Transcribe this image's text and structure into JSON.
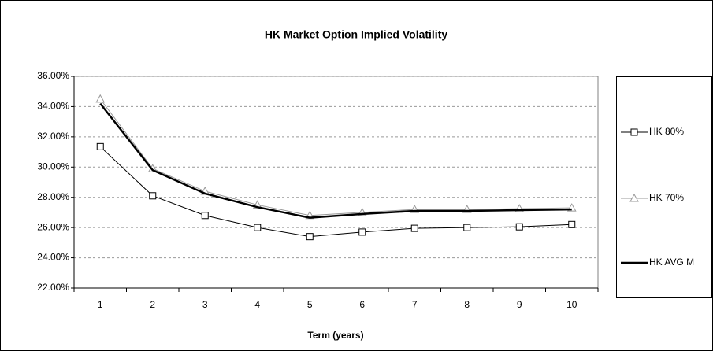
{
  "chart_data": {
    "type": "line",
    "title": "HK Market Option Implied Volatility",
    "x_label": "Term (years)",
    "categories": [
      "1",
      "2",
      "3",
      "4",
      "5",
      "6",
      "7",
      "8",
      "9",
      "10"
    ],
    "series": [
      {
        "name": "HK 80%",
        "color": "#000000",
        "marker": "square",
        "line_width": 1,
        "values": [
          31.35,
          28.1,
          26.8,
          26.0,
          25.4,
          25.7,
          25.95,
          26.0,
          26.05,
          26.2
        ]
      },
      {
        "name": "HK 70%",
        "color": "#999999",
        "marker": "triangle",
        "line_width": 1,
        "values": [
          34.5,
          29.9,
          28.4,
          27.5,
          26.8,
          27.0,
          27.2,
          27.2,
          27.25,
          27.3
        ]
      },
      {
        "name": "HK AVG M",
        "color": "#000000",
        "marker": "none",
        "line_width": 2.5,
        "values": [
          34.2,
          29.8,
          28.25,
          27.35,
          26.65,
          26.9,
          27.1,
          27.1,
          27.15,
          27.2
        ]
      }
    ],
    "ylim": [
      22,
      36
    ],
    "yticks": [
      {
        "value": 22,
        "label": "22.00%"
      },
      {
        "value": 24,
        "label": "24.00%"
      },
      {
        "value": 26,
        "label": "26.00%"
      },
      {
        "value": 28,
        "label": "28.00%"
      },
      {
        "value": 30,
        "label": "30.00%"
      },
      {
        "value": 32,
        "label": "32.00%"
      },
      {
        "value": 34,
        "label": "34.00%"
      },
      {
        "value": 36,
        "label": "36.00%"
      }
    ],
    "grid": true,
    "legend": "right"
  }
}
